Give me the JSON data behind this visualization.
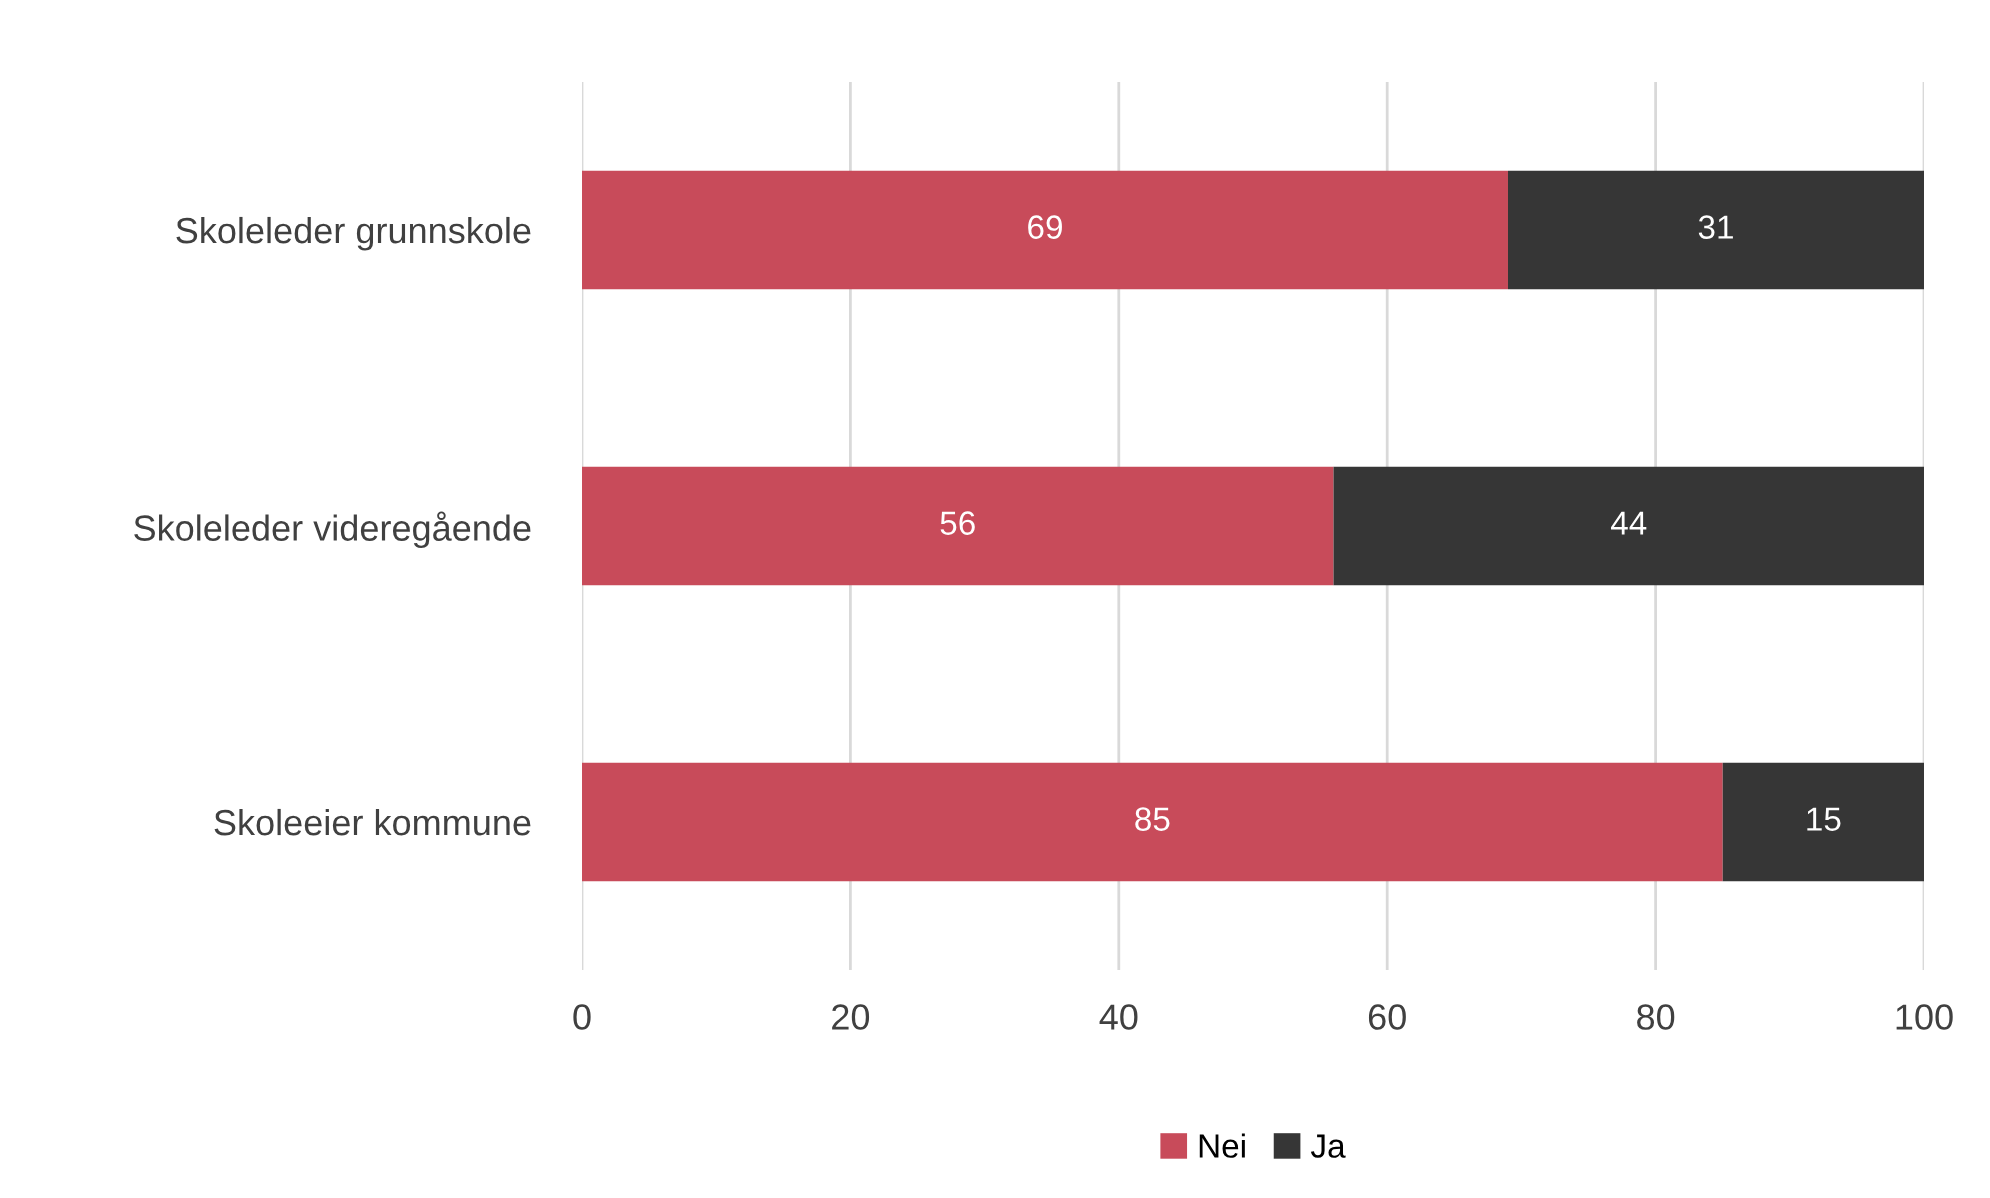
{
  "chart_data": {
    "type": "bar",
    "orientation": "horizontal",
    "stacked": true,
    "categories": [
      "Skoleleder grunnskole",
      "Skoleleder videregående",
      "Skoleeier kommune"
    ],
    "series": [
      {
        "name": "Nei",
        "color": "#c84b5a",
        "values": [
          69,
          56,
          85
        ]
      },
      {
        "name": "Ja",
        "color": "#363636",
        "values": [
          31,
          44,
          15
        ]
      }
    ],
    "xlim": [
      0,
      100
    ],
    "xticks": [
      0,
      20,
      40,
      60,
      80,
      100
    ],
    "grid": "x",
    "legend": "bottom",
    "data_labels": true
  }
}
